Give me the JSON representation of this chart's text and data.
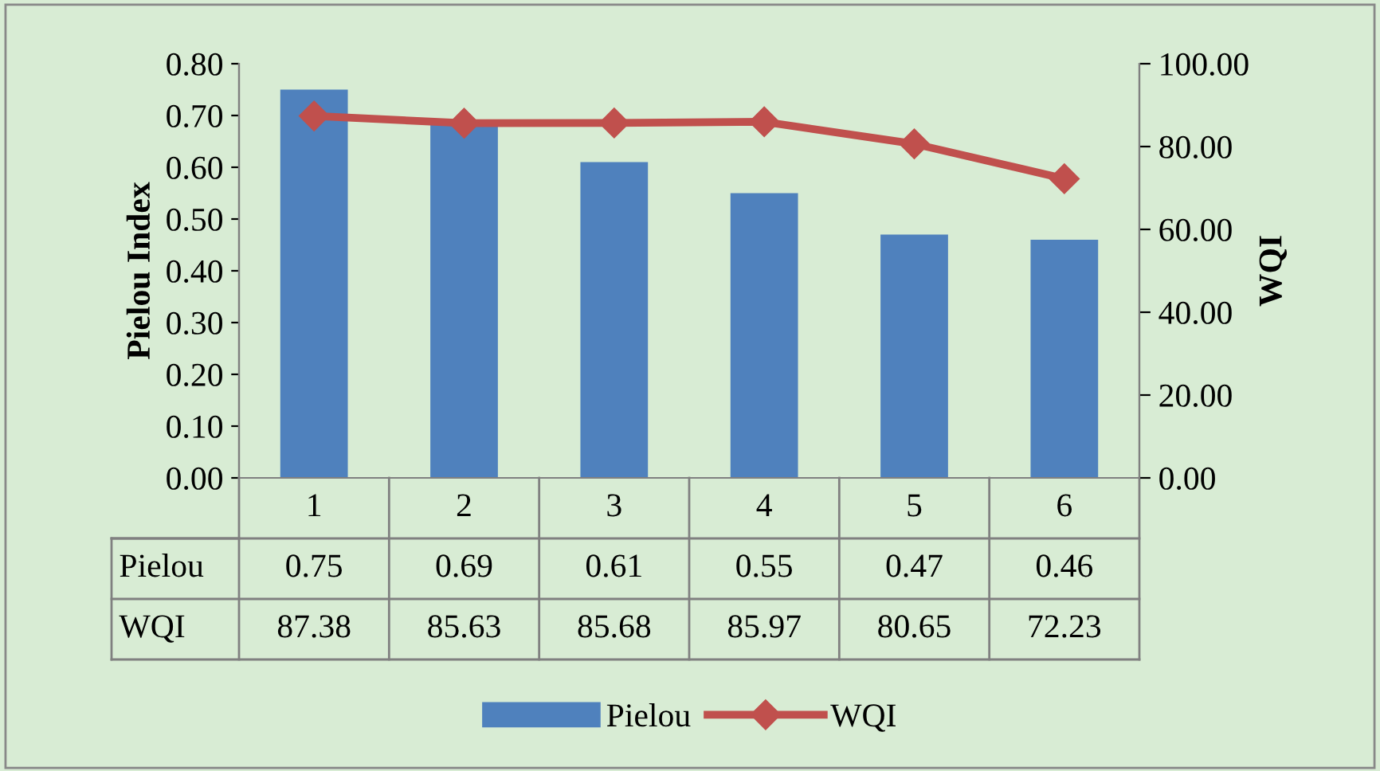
{
  "chart_data": {
    "type": "bar",
    "categories": [
      "1",
      "2",
      "3",
      "4",
      "5",
      "6"
    ],
    "series": [
      {
        "name": "Pielou",
        "color": "#4f81bd",
        "values": [
          0.75,
          0.69,
          0.61,
          0.55,
          0.47,
          0.46
        ]
      },
      {
        "name": "WQI",
        "type": "line",
        "axis": "y2",
        "color": "#c0504d",
        "marker": "diamond",
        "values": [
          87.38,
          85.63,
          85.68,
          85.97,
          80.65,
          72.23
        ]
      }
    ],
    "ylabel": "Pielou Index",
    "y2label": "WQI",
    "ylim": [
      0,
      0.8
    ],
    "yticks": [
      {
        "value": 0,
        "label": "0.00"
      },
      {
        "value": 0.1,
        "label": "0.10"
      },
      {
        "value": 0.2,
        "label": "0.20"
      },
      {
        "value": 0.3,
        "label": "0.30"
      },
      {
        "value": 0.4,
        "label": "0.40"
      },
      {
        "value": 0.5,
        "label": "0.50"
      },
      {
        "value": 0.6,
        "label": "0.60"
      },
      {
        "value": 0.7,
        "label": "0.70"
      },
      {
        "value": 0.8,
        "label": "0.80"
      }
    ],
    "y2lim": [
      0,
      100
    ],
    "y2ticks": [
      {
        "value": 0,
        "label": "0.00"
      },
      {
        "value": 20,
        "label": "20.00"
      },
      {
        "value": 40,
        "label": "40.00"
      },
      {
        "value": 60,
        "label": "60.00"
      },
      {
        "value": 80,
        "label": "80.00"
      },
      {
        "value": 100,
        "label": "100.00"
      }
    ],
    "data_labels": true,
    "legend": "bottom"
  }
}
